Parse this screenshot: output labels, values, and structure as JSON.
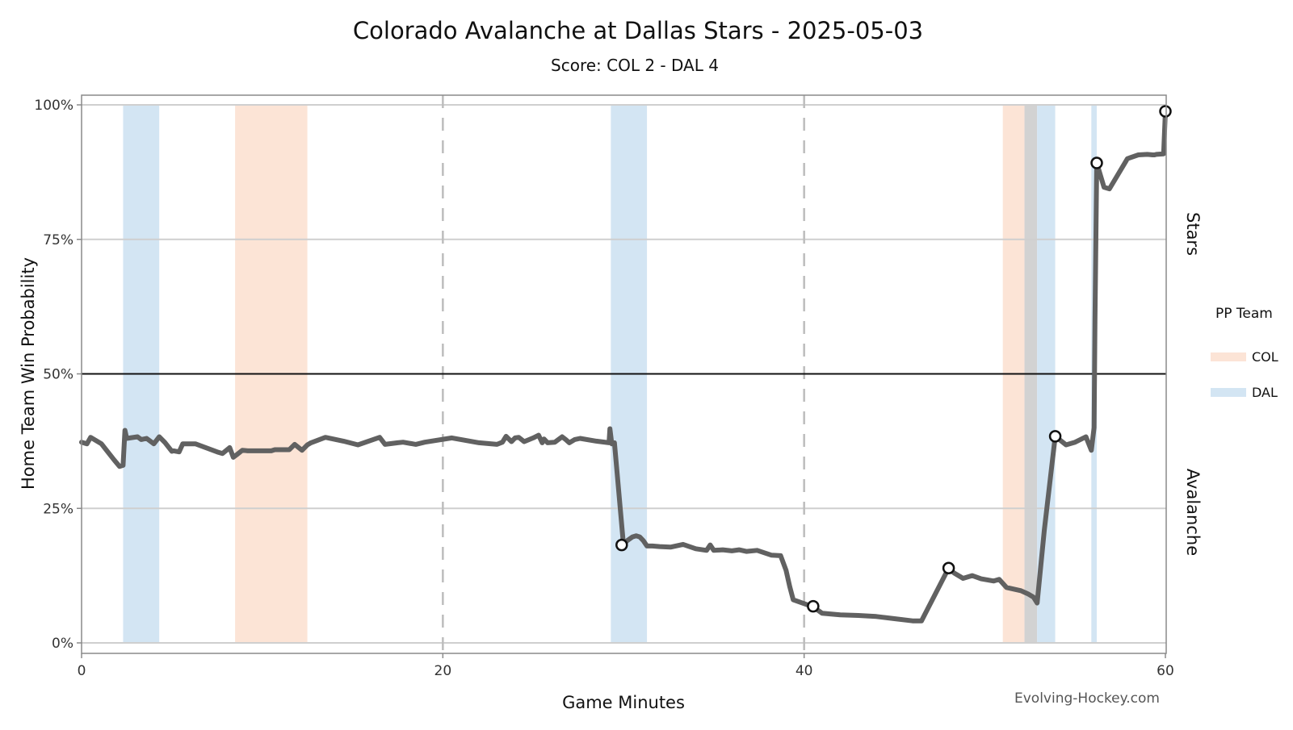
{
  "chart_data": {
    "type": "line",
    "title": "Colorado Avalanche at Dallas Stars - 2025-05-03",
    "subtitle": "Score: COL 2 - DAL 4",
    "xlabel": "Game Minutes",
    "ylabel": "Home Team Win Probability",
    "xlim": [
      0,
      60
    ],
    "ylim": [
      0,
      100
    ],
    "x_ticks": [
      0,
      20,
      40,
      60
    ],
    "y_ticks": [
      0,
      25,
      50,
      75,
      100
    ],
    "y_tick_labels": [
      "0%",
      "25%",
      "50%",
      "75%",
      "100%"
    ],
    "reference_line_y": 50,
    "period_lines_x": [
      20,
      40
    ],
    "side_labels": {
      "top": "Stars",
      "bottom": "Avalanche"
    },
    "legend": {
      "title": "PP Team",
      "position": "right",
      "items": [
        {
          "label": "COL",
          "color": "#fce4d6"
        },
        {
          "label": "DAL",
          "color": "#d3e5f3"
        }
      ]
    },
    "colors": {
      "line": "#616161",
      "col_pp": "#fce4d6",
      "dal_pp": "#d3e5f3",
      "overlap_pp": "#d2d2d2",
      "grid": "#cfcfcf",
      "reference_line": "#111111"
    },
    "pp_spans": [
      {
        "team": "DAL",
        "x0": 2.3,
        "x1": 4.3
      },
      {
        "team": "COL",
        "x0": 8.5,
        "x1": 12.5
      },
      {
        "team": "DAL",
        "x0": 29.3,
        "x1": 31.3
      },
      {
        "team": "COL",
        "x0": 51.0,
        "x1": 52.2
      },
      {
        "team": "BOTH",
        "x0": 52.2,
        "x1": 52.9
      },
      {
        "team": "DAL",
        "x0": 52.9,
        "x1": 53.9
      },
      {
        "team": "DAL",
        "x0": 55.9,
        "x1": 56.2
      }
    ],
    "series": [
      {
        "x": [
          0,
          0.3,
          0.5,
          1.1,
          1.8,
          2.1,
          2.3,
          2.4,
          2.5,
          3.1,
          3.3,
          3.6,
          4.0,
          4.3,
          4.6,
          5.0,
          5.1,
          5.4,
          5.6,
          6.3,
          7.5,
          7.8,
          8.2,
          8.4,
          8.6,
          8.9,
          9.2,
          10.0,
          10.5,
          10.7,
          11.2,
          11.5,
          11.8,
          12.2,
          12.5,
          12.7,
          13.5,
          14.5,
          15.3,
          16.5,
          16.8,
          17.5,
          17.8,
          18.5,
          19.0,
          20.5,
          21.0,
          22.0,
          23.0,
          23.3,
          23.5,
          23.8,
          24.0,
          24.2,
          24.5,
          25.0,
          25.3,
          25.5,
          25.6,
          25.8,
          26.2,
          26.6,
          26.8,
          27.0,
          27.3,
          27.6,
          28.5,
          29.2,
          29.25,
          29.35,
          29.5,
          30.0,
          30.2,
          30.5,
          30.7,
          30.9,
          31.1,
          31.3,
          31.6,
          32.0,
          32.6,
          33.3,
          34.0,
          34.6,
          34.8,
          35.0,
          35.5,
          36.0,
          36.4,
          36.8,
          37.4,
          38.2,
          38.7,
          39.0,
          39.2,
          39.4,
          40.5,
          41.0,
          42.0,
          43.0,
          44.0,
          45.0,
          46.0,
          46.5,
          48.0,
          48.3,
          48.8,
          49.3,
          49.8,
          50.5,
          50.8,
          51.2,
          52.0,
          52.4,
          52.7,
          52.9,
          53.3,
          53.9,
          54.5,
          55.0,
          55.6,
          55.9,
          56.05,
          56.1,
          56.2,
          56.6,
          56.9,
          57.9,
          58.5,
          59.0,
          59.3,
          59.4,
          59.5,
          59.9,
          60.0
        ],
        "y": [
          37.3,
          37.0,
          38.2,
          37.0,
          34.0,
          32.8,
          33.0,
          39.5,
          38.0,
          38.3,
          37.8,
          38.0,
          37.0,
          38.3,
          37.3,
          35.6,
          35.7,
          35.5,
          37.0,
          37.0,
          35.5,
          35.2,
          36.3,
          34.5,
          35.0,
          35.8,
          35.7,
          35.7,
          35.7,
          35.9,
          35.9,
          35.9,
          36.9,
          35.8,
          36.8,
          37.2,
          38.2,
          37.5,
          36.8,
          38.2,
          36.9,
          37.2,
          37.3,
          36.9,
          37.3,
          38.1,
          37.8,
          37.2,
          36.9,
          37.3,
          38.4,
          37.4,
          38.1,
          38.2,
          37.4,
          38.1,
          38.6,
          37.2,
          37.9,
          37.2,
          37.3,
          38.3,
          37.8,
          37.2,
          37.8,
          38.0,
          37.5,
          37.2,
          39.8,
          37.0,
          37.2,
          18.2,
          19.0,
          19.7,
          19.9,
          19.7,
          19.0,
          18.0,
          18.0,
          17.9,
          17.8,
          18.3,
          17.5,
          17.2,
          18.2,
          17.2,
          17.3,
          17.1,
          17.3,
          17.0,
          17.2,
          16.3,
          16.2,
          13.5,
          10.5,
          8.0,
          6.7,
          5.5,
          5.2,
          5.1,
          4.9,
          4.5,
          4.1,
          4.1,
          13.9,
          13.0,
          12.0,
          12.5,
          11.9,
          11.5,
          11.8,
          10.3,
          9.7,
          9.1,
          8.5,
          7.4,
          21.0,
          38.4,
          36.8,
          37.3,
          38.3,
          35.8,
          40.0,
          60.0,
          89.2,
          84.7,
          84.4,
          90.0,
          90.7,
          90.8,
          90.7,
          90.7,
          90.8,
          90.9,
          98.8
        ]
      }
    ],
    "goal_markers": [
      {
        "x": 29.9,
        "y": 18.2
      },
      {
        "x": 40.5,
        "y": 6.8
      },
      {
        "x": 48.0,
        "y": 13.9
      },
      {
        "x": 53.9,
        "y": 38.4
      },
      {
        "x": 56.2,
        "y": 89.2
      },
      {
        "x": 60.0,
        "y": 98.8
      }
    ],
    "credit": "Evolving-Hockey.com"
  }
}
